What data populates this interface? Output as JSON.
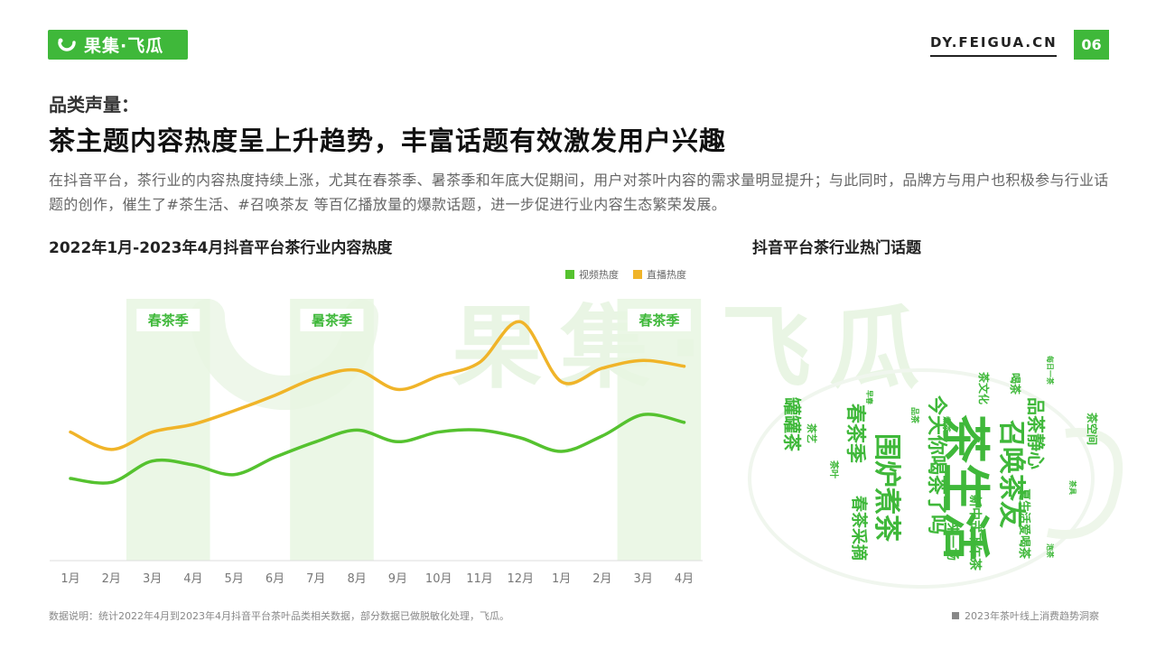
{
  "header": {
    "logo_text": "果集·飞瓜",
    "site_url": "DY.FEIGUA.CN",
    "page_number": "06",
    "brand_color": "#3fb83a"
  },
  "section_label": "品类声量：",
  "headline": "茶主题内容热度呈上升趋势，丰富话题有效激发用户兴趣",
  "description": "在抖音平台，茶行业的内容热度持续上涨，尤其在春茶季、暑茶季和年底大促期间，用户对茶叶内容的需求量明显提升；与此同时，品牌方与用户也积极参与行业话题的创作，催生了#茶生活、#召唤茶友 等百亿播放量的爆款话题，进一步促进行业内容生态繁荣发展。",
  "chart_title": "2022年1月-2023年4月抖音平台茶行业内容热度",
  "cloud_title": "抖音平台茶行业热门话题",
  "watermark": "果集·飞瓜",
  "chart_data": {
    "type": "line",
    "title": "2022年1月-2023年4月抖音平台茶行业内容热度",
    "categories": [
      "1月",
      "2月",
      "3月",
      "4月",
      "5月",
      "6月",
      "7月",
      "8月",
      "9月",
      "10月",
      "11月",
      "12月",
      "1月",
      "2月",
      "3月",
      "4月"
    ],
    "series": [
      {
        "name": "视频热度",
        "color": "#55c22f",
        "values": [
          0.42,
          0.4,
          0.51,
          0.49,
          0.44,
          0.53,
          0.61,
          0.67,
          0.61,
          0.66,
          0.67,
          0.63,
          0.56,
          0.64,
          0.75,
          0.71
        ]
      },
      {
        "name": "直播热度",
        "color": "#f0b429",
        "values": [
          0.66,
          0.57,
          0.66,
          0.7,
          0.77,
          0.85,
          0.94,
          0.98,
          0.88,
          0.95,
          1.02,
          1.23,
          0.92,
          0.99,
          1.03,
          1.0
        ]
      }
    ],
    "ylim": [
      0,
      1.4
    ],
    "highlights": [
      {
        "label": "春茶季",
        "from": 2,
        "to": 3
      },
      {
        "label": "暑茶季",
        "from": 6,
        "to": 7
      },
      {
        "label": "春茶季",
        "from": 14,
        "to": 15
      }
    ],
    "legend_position": "top-right",
    "grid": false
  },
  "word_cloud": {
    "color": "#3fb83a",
    "words": [
      "茶生活",
      "召唤茶友",
      "围炉煮茶",
      "今天你喝茶了吗",
      "品茶静心",
      "春茶季",
      "春茶采摘",
      "罐罐茶",
      "新中式下午茶",
      "来一场",
      "茶文化",
      "喝茶",
      "茶空间",
      "夏生活爱喝茶",
      "茶艺",
      "茶叶",
      "每日一茶",
      "早春",
      "品茶",
      "茶具",
      "煮茶",
      "泡茶"
    ]
  },
  "footer": {
    "note": "数据说明：统计2022年4月到2023年4月抖音平台茶叶品类相关数据，部分数据已做脱敏化处理，飞瓜。",
    "report": "2023年茶叶线上消费趋势洞察"
  }
}
